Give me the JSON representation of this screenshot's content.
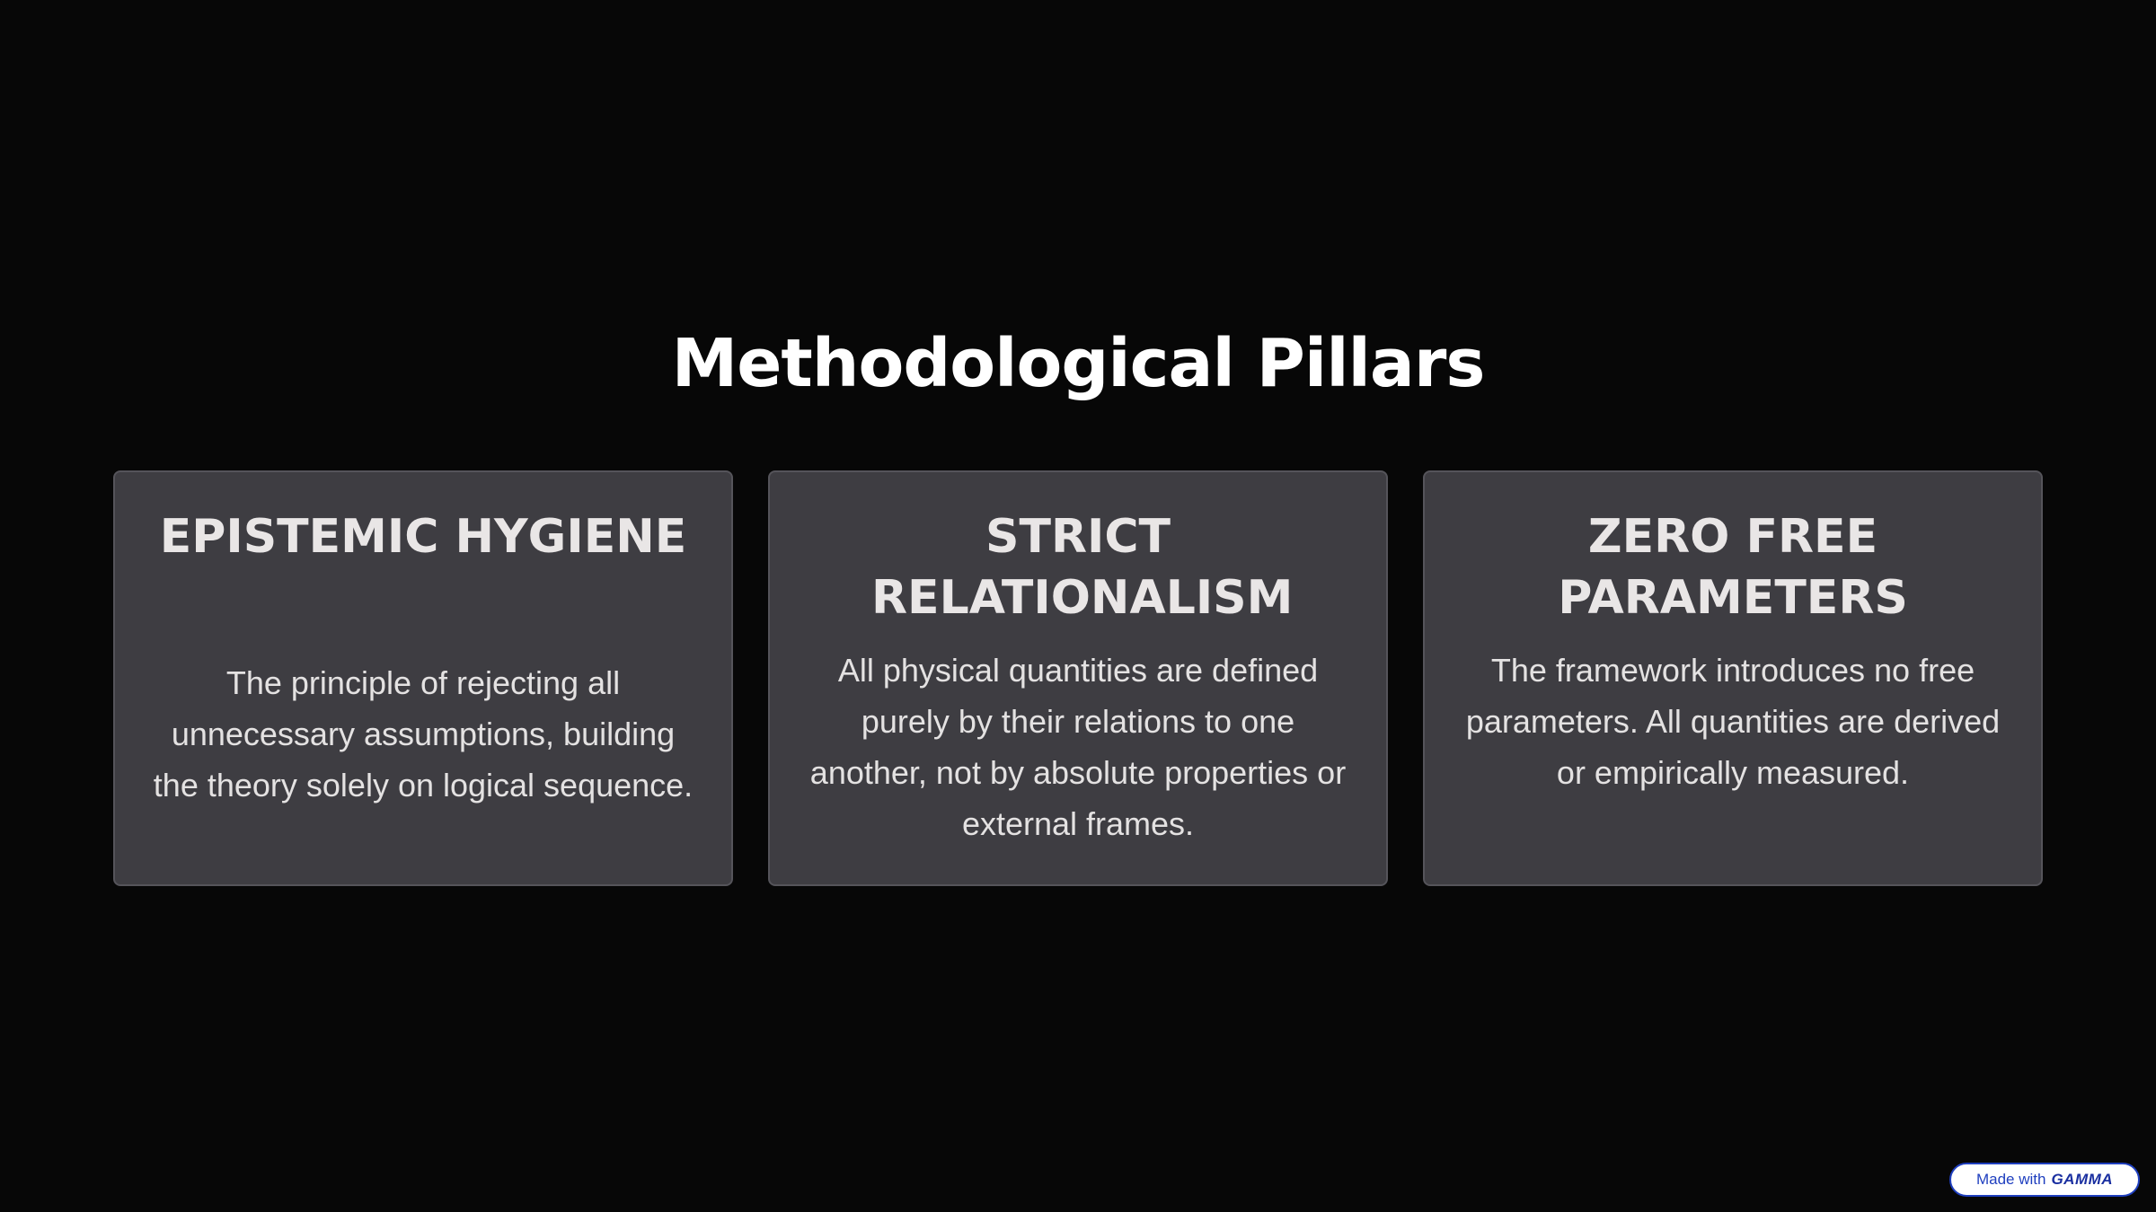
{
  "slide": {
    "title": "Methodological Pillars",
    "cards": [
      {
        "heading": "EPISTEMIC HYGIENE",
        "body": "The principle of rejecting all unnecessary assumptions, building the theory solely on logical sequence."
      },
      {
        "heading": "STRICT RELATIONALISM",
        "body": "All physical quantities are defined purely by their relations to one another, not by absolute properties or external frames."
      },
      {
        "heading": "ZERO FREE PARAMETERS",
        "body": "The framework introduces no free parameters. All quantities are derived or empirically measured."
      }
    ]
  },
  "badge": {
    "prefix": "Made with",
    "brand": "GAMMA"
  },
  "colors": {
    "background": "#070707",
    "card": "#3e3d42",
    "badge_accent": "#1f3fbf"
  }
}
